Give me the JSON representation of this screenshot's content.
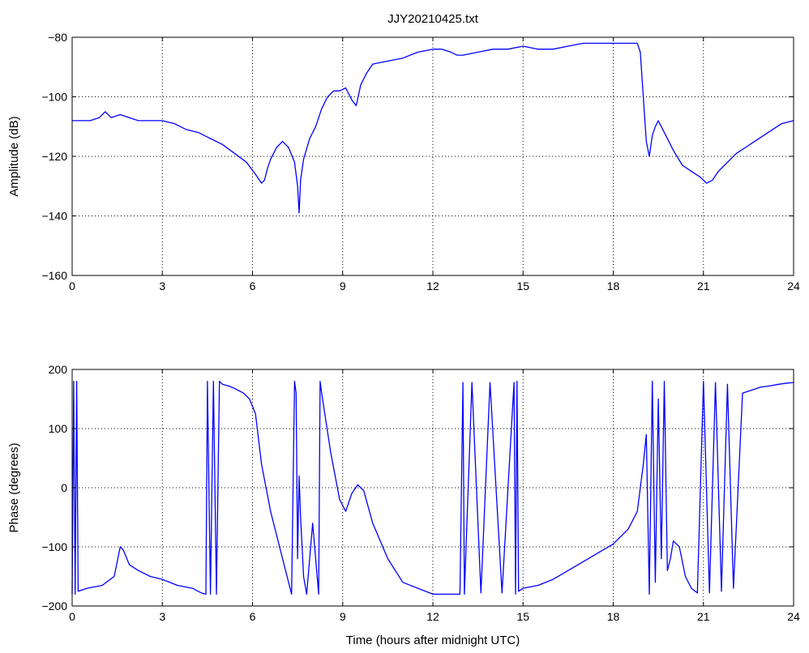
{
  "chart_data": [
    {
      "type": "line",
      "title": "JJY20210425.txt",
      "xlabel": "",
      "ylabel": "Amplitude (dB)",
      "xlim": [
        0,
        24
      ],
      "ylim": [
        -160,
        -80
      ],
      "xticks": [
        "0",
        "3",
        "6",
        "9",
        "12",
        "15",
        "18",
        "21",
        "24"
      ],
      "yticks": [
        "−160",
        "−140",
        "−120",
        "−100",
        "−80"
      ],
      "grid": true,
      "color": "#0000ff",
      "series": [
        {
          "x": [
            0,
            0.3,
            0.6,
            0.9,
            1.1,
            1.3,
            1.6,
            1.9,
            2.2,
            2.6,
            3.0,
            3.4,
            3.8,
            4.2,
            4.6,
            5.0,
            5.4,
            5.8,
            6.1,
            6.3,
            6.4,
            6.5,
            6.6,
            6.8,
            7.0,
            7.2,
            7.4,
            7.5,
            7.55,
            7.6,
            7.7,
            7.9,
            8.1,
            8.3,
            8.5,
            8.7,
            8.9,
            9.1,
            9.3,
            9.45,
            9.6,
            9.8,
            10.0,
            10.5,
            11.0,
            11.5,
            12.0,
            12.3,
            12.6,
            12.8,
            13.0,
            13.5,
            14.0,
            14.5,
            15.0,
            15.5,
            16.0,
            16.5,
            17.0,
            17.5,
            18.0,
            18.5,
            18.8,
            18.9,
            19.0,
            19.1,
            19.2,
            19.3,
            19.4,
            19.5,
            19.7,
            20.0,
            20.3,
            20.6,
            20.9,
            21.1,
            21.3,
            21.5,
            21.8,
            22.1,
            22.4,
            22.7,
            23.0,
            23.3,
            23.6,
            24.0
          ],
          "y": [
            -108,
            -108,
            -108,
            -107,
            -105,
            -107,
            -106,
            -107,
            -108,
            -108,
            -108,
            -109,
            -111,
            -112,
            -114,
            -116,
            -119,
            -122,
            -126,
            -129,
            -128,
            -124,
            -121,
            -117,
            -115,
            -117,
            -122,
            -130,
            -139,
            -128,
            -121,
            -114,
            -110,
            -104,
            -100,
            -98,
            -98,
            -97,
            -101,
            -103,
            -96,
            -92,
            -89,
            -88,
            -87,
            -85,
            -84,
            -84,
            -85,
            -86,
            -86,
            -85,
            -84,
            -84,
            -83,
            -84,
            -84,
            -83,
            -82,
            -82,
            -82,
            -82,
            -82,
            -85,
            -100,
            -115,
            -120,
            -113,
            -110,
            -108,
            -112,
            -118,
            -123,
            -125,
            -127,
            -129,
            -128,
            -125,
            -122,
            -119,
            -117,
            -115,
            -113,
            -111,
            -109,
            -108
          ]
        }
      ]
    },
    {
      "type": "line",
      "title": "",
      "xlabel": "Time (hours after midnight UTC)",
      "ylabel": "Phase (degrees)",
      "xlim": [
        0,
        24
      ],
      "ylim": [
        -200,
        200
      ],
      "xticks": [
        "0",
        "3",
        "6",
        "9",
        "12",
        "15",
        "18",
        "21",
        "24"
      ],
      "yticks": [
        "−200",
        "−100",
        "0",
        "100",
        "200"
      ],
      "grid": true,
      "color": "#0000ff",
      "series": [
        {
          "x": [
            0,
            0.05,
            0.1,
            0.15,
            0.2,
            0.5,
            1.0,
            1.4,
            1.6,
            1.7,
            1.9,
            2.2,
            2.6,
            3.0,
            3.5,
            4.0,
            4.3,
            4.45,
            4.5,
            4.6,
            4.7,
            4.8,
            4.9,
            5.0,
            5.2,
            5.4,
            5.7,
            5.9,
            6.1,
            6.3,
            6.6,
            7.0,
            7.3,
            7.4,
            7.45,
            7.5,
            7.55,
            7.6,
            7.65,
            7.7,
            7.8,
            8.0,
            8.2,
            8.25,
            8.3,
            8.6,
            8.9,
            9.1,
            9.3,
            9.5,
            9.7,
            10.0,
            10.5,
            11.0,
            11.5,
            12.0,
            12.5,
            12.9,
            13.0,
            13.05,
            13.3,
            13.6,
            13.9,
            14.3,
            14.7,
            14.75,
            14.8,
            14.85,
            15.0,
            15.5,
            16.0,
            16.5,
            17.0,
            17.5,
            18.0,
            18.5,
            18.8,
            19.0,
            19.1,
            19.2,
            19.3,
            19.4,
            19.5,
            19.6,
            19.7,
            19.8,
            19.9,
            20.0,
            20.2,
            20.4,
            20.6,
            20.8,
            21.0,
            21.2,
            21.4,
            21.6,
            21.8,
            22.0,
            22.3,
            22.6,
            22.9,
            23.2,
            23.5,
            23.8,
            24.0
          ],
          "y": [
            -180,
            180,
            -180,
            180,
            -175,
            -170,
            -165,
            -150,
            -100,
            -105,
            -130,
            -140,
            -150,
            -155,
            -165,
            -170,
            -178,
            -180,
            180,
            -180,
            180,
            -180,
            180,
            175,
            172,
            168,
            160,
            150,
            125,
            40,
            -40,
            -120,
            -180,
            180,
            160,
            -120,
            20,
            -50,
            -100,
            -150,
            -180,
            -60,
            -180,
            180,
            160,
            60,
            -20,
            -40,
            -10,
            5,
            -5,
            -60,
            -120,
            -160,
            -170,
            -180,
            -180,
            -180,
            178,
            -180,
            178,
            -178,
            178,
            -178,
            178,
            -180,
            180,
            -175,
            -170,
            -165,
            -155,
            -140,
            -125,
            -110,
            -95,
            -70,
            -40,
            40,
            90,
            -180,
            180,
            -160,
            150,
            -120,
            180,
            -140,
            -120,
            -90,
            -100,
            -150,
            -170,
            -178,
            180,
            -178,
            178,
            -175,
            175,
            -170,
            160,
            165,
            170,
            172,
            175,
            177,
            178
          ]
        }
      ]
    }
  ]
}
